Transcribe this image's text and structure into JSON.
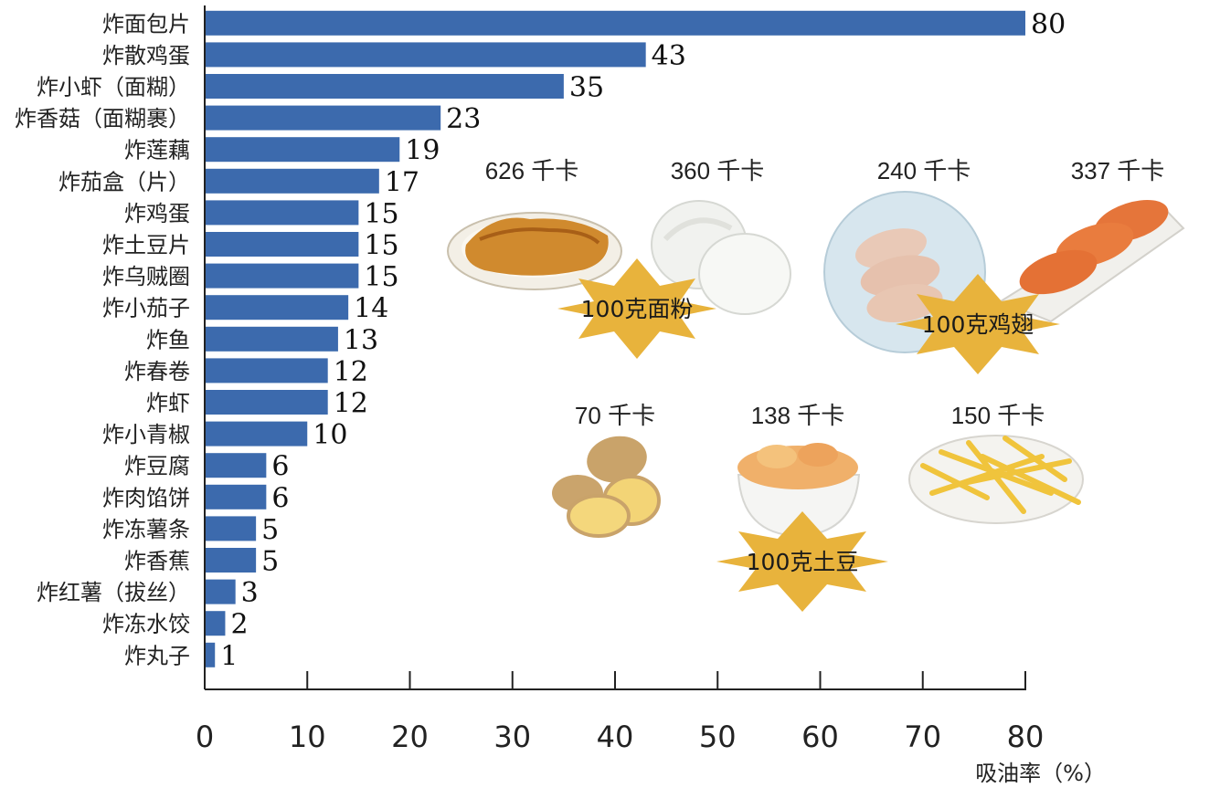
{
  "chart_data": {
    "type": "bar",
    "orientation": "horizontal",
    "categories": [
      "炸面包片",
      "炸散鸡蛋",
      "炸小虾（面糊）",
      "炸香菇（面糊裹）",
      "炸莲藕",
      "炸茄盒（片）",
      "炸鸡蛋",
      "炸土豆片",
      "炸乌贼圈",
      "炸小茄子",
      "炸鱼",
      "炸春卷",
      "炸虾",
      "炸小青椒",
      "炸豆腐",
      "炸肉馅饼",
      "炸冻薯条",
      "炸香蕉",
      "炸红薯（拔丝）",
      "炸冻水饺",
      "炸丸子"
    ],
    "values": [
      80,
      43,
      35,
      23,
      19,
      17,
      15,
      15,
      15,
      14,
      13,
      12,
      12,
      10,
      6,
      6,
      5,
      5,
      3,
      2,
      1
    ],
    "xlabel": "吸油率（%）",
    "xlim": [
      0,
      80
    ],
    "xticks": [
      0,
      10,
      20,
      30,
      40,
      50,
      60,
      70,
      80
    ],
    "grid": false,
    "bar_color": "#3c6aad"
  },
  "insets": [
    {
      "kcal": "626 千卡",
      "image": "fried-dough-stick-plate"
    },
    {
      "kcal": "360 千卡",
      "image": "steamed-buns"
    },
    {
      "kcal": "240 千卡",
      "image": "raw-chicken-wings-plate"
    },
    {
      "kcal": "337 千卡",
      "image": "fried-chicken-wings-tray"
    },
    {
      "kcal": "70 千卡",
      "image": "potatoes"
    },
    {
      "kcal": "138 千卡",
      "image": "potato-chips-bowl"
    },
    {
      "kcal": "150 千卡",
      "image": "french-fries-plate"
    }
  ],
  "stars": [
    {
      "label": "100克面粉",
      "color": "#e8b33c"
    },
    {
      "label": "100克鸡翅",
      "color": "#e8b33c"
    },
    {
      "label": "100克土豆",
      "color": "#e8b33c"
    }
  ]
}
